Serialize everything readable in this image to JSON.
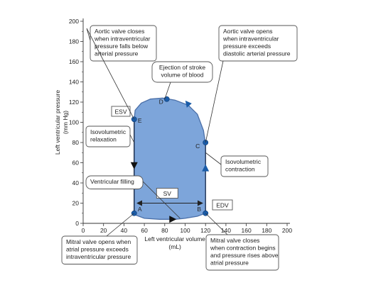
{
  "chart_data": {
    "type": "line",
    "xlabel": "Left ventricular volume\n(mL)",
    "ylabel": "Left ventricular pressure\n(mm Hg)",
    "xlim": [
      0,
      200
    ],
    "ylim": [
      0,
      200
    ],
    "xticks": [
      0,
      20,
      40,
      60,
      80,
      100,
      120,
      140,
      160,
      180,
      200
    ],
    "yticks": [
      0,
      20,
      40,
      60,
      80,
      100,
      120,
      140,
      160,
      180,
      200
    ],
    "loop": [
      [
        50,
        10
      ],
      [
        52,
        8
      ],
      [
        60,
        5
      ],
      [
        75,
        4
      ],
      [
        90,
        4
      ],
      [
        100,
        5
      ],
      [
        112,
        7
      ],
      [
        120,
        10
      ],
      [
        120,
        40
      ],
      [
        120,
        60
      ],
      [
        120,
        78
      ],
      [
        118,
        92
      ],
      [
        112,
        108
      ],
      [
        103,
        117
      ],
      [
        90,
        122
      ],
      [
        78,
        124
      ],
      [
        66,
        123
      ],
      [
        57,
        119
      ],
      [
        51,
        112
      ],
      [
        50,
        103
      ],
      [
        50,
        60
      ],
      [
        50,
        10
      ]
    ],
    "points": [
      {
        "label": "A",
        "x": 50,
        "y": 10
      },
      {
        "label": "B",
        "x": 120,
        "y": 10
      },
      {
        "label": "C",
        "x": 120,
        "y": 80
      },
      {
        "label": "D",
        "x": 82,
        "y": 123
      },
      {
        "label": "E",
        "x": 50,
        "y": 103
      }
    ],
    "sv_label": "SV",
    "esv_label": "ESV",
    "edv_label": "EDV",
    "annotations": [
      "Aortic valve closes when intraventricular pressure falls below arterial pressure",
      "Aortic valve opens when intraventricular pressure exceeds diastolic arterial pressure",
      "Ejection of stroke volume of blood",
      "Isovolumetric relaxation",
      "Isovolumetric contraction",
      "Ventricular filling",
      "Mitral valve opens when atrial pressure exceeds intraventricular pressure",
      "Mitral valve closes when contraction begins and pressure rises above atrial pressure"
    ],
    "colors": {
      "fill": "#7da5da",
      "stroke": "#4a6fa8",
      "marker": "#1a5ca8"
    }
  },
  "callouts": {
    "aortic_closes": [
      "Aortic valve closes",
      "when intraventricular",
      "pressure falls below",
      "arterial pressure"
    ],
    "aortic_opens": [
      "Aortic valve opens",
      "when intraventricular",
      "pressure exceeds",
      "diastolic arterial pressure"
    ],
    "ejection": [
      "Ejection of  stroke",
      "volume of blood"
    ],
    "iso_relax": [
      "Isovolumetric",
      "relaxation"
    ],
    "iso_contract": [
      "Isovolumetric",
      "contraction"
    ],
    "filling": [
      "Ventricular filling"
    ],
    "mitral_opens": [
      "Mitral valve opens when",
      "atrial pressure exceeds",
      "intraventricular pressure"
    ],
    "mitral_closes": [
      "Mitral valve closes",
      "when contraction begins",
      "and pressure rises above",
      "atrial pressure"
    ]
  }
}
